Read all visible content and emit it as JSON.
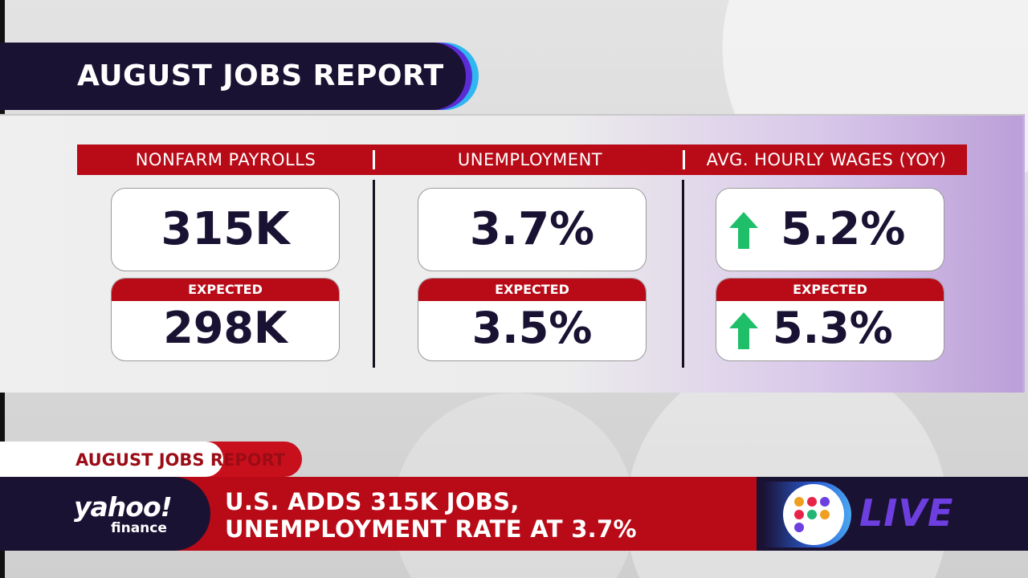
{
  "title": "AUGUST JOBS REPORT",
  "columns": [
    {
      "header": "NONFARM PAYROLLS",
      "actual": "315K",
      "expected_label": "EXPECTED",
      "expected": "298K",
      "arrow": false
    },
    {
      "header": "UNEMPLOYMENT",
      "actual": "3.7%",
      "expected_label": "EXPECTED",
      "expected": "3.5%",
      "arrow": false
    },
    {
      "header": "AVG. HOURLY WAGES (YOY)",
      "actual": "5.2%",
      "expected_label": "EXPECTED",
      "expected": "5.3%",
      "arrow": true,
      "arrow_icon": "arrow-up-icon"
    }
  ],
  "lower_third": {
    "tag": "AUGUST JOBS REPORT",
    "headline_line1": "U.S. ADDS 315K JOBS,",
    "headline_line2": "UNEMPLOYMENT RATE AT 3.7%",
    "logo_main": "yahoo!",
    "logo_sub": "finance",
    "live": "LIVE"
  },
  "colors": {
    "navy": "#1a1233",
    "red": "#b80a17",
    "green_arrow": "#1fbf6a",
    "live_purple": "#6d3fe0"
  }
}
